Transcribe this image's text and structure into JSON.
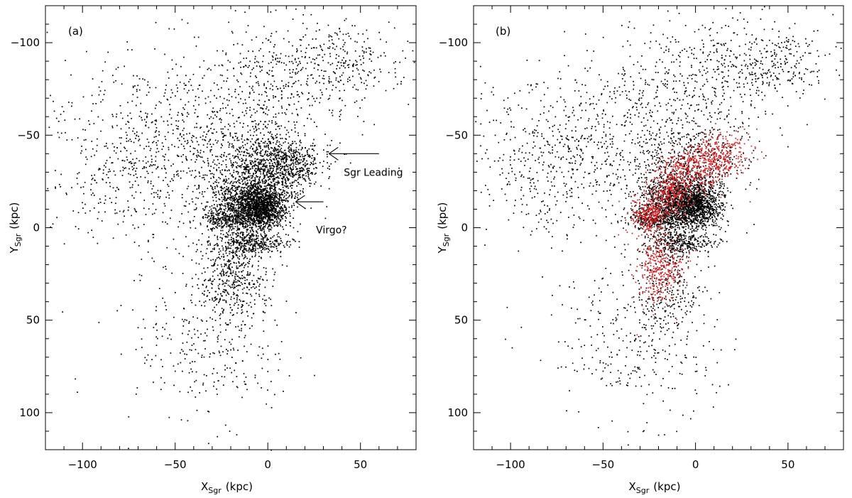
{
  "chart_data": [
    {
      "type": "scatter",
      "panel_label": "(a)",
      "xlabel": {
        "main": "X",
        "sub": "Sgr",
        "unit": "(kpc)"
      },
      "ylabel": {
        "main": "Y",
        "sub": "Sgr",
        "unit": "(kpc)"
      },
      "xlim": [
        -120,
        80
      ],
      "ylim": [
        120,
        -120
      ],
      "xticks": [
        -100,
        -50,
        0,
        50
      ],
      "yticks": [
        -100,
        -50,
        0,
        50,
        100
      ],
      "grid": false,
      "series": [
        {
          "color": "#000000",
          "clouds": [
            {
              "cx": -40,
              "cy": -50,
              "sx": 35,
              "sy": 22,
              "n": 700
            },
            {
              "cx": -80,
              "cy": -30,
              "sx": 18,
              "sy": 20,
              "n": 260
            },
            {
              "cx": 10,
              "cy": -85,
              "sx": 25,
              "sy": 15,
              "n": 380
            },
            {
              "cx": 40,
              "cy": -90,
              "sx": 15,
              "sy": 10,
              "n": 180
            },
            {
              "cx": -5,
              "cy": -35,
              "sx": 14,
              "sy": 12,
              "n": 600
            },
            {
              "cx": 8,
              "cy": -33,
              "sx": 10,
              "sy": 7,
              "n": 500
            },
            {
              "cx": -10,
              "cy": -15,
              "sx": 10,
              "sy": 7,
              "n": 1100
            },
            {
              "cx": -3,
              "cy": -10,
              "sx": 6,
              "sy": 5,
              "n": 900
            },
            {
              "cx": -22,
              "cy": -5,
              "sx": 8,
              "sy": 3,
              "n": 300
            },
            {
              "cx": -8,
              "cy": 8,
              "sx": 10,
              "sy": 3,
              "n": 350
            },
            {
              "cx": -20,
              "cy": 25,
              "sx": 9,
              "sy": 12,
              "n": 450
            },
            {
              "cx": -25,
              "cy": 60,
              "sx": 18,
              "sy": 22,
              "n": 250
            },
            {
              "cx": -55,
              "cy": 55,
              "sx": 20,
              "sy": 25,
              "n": 90
            }
          ]
        }
      ],
      "annotations": [
        {
          "text": "Sgr Leading",
          "arrow_tip": [
            33,
            -40
          ],
          "arrow_tail": [
            60,
            -40
          ],
          "text_at": [
            41,
            -28
          ]
        },
        {
          "text": "Virgo?",
          "arrow_tip": [
            15,
            -14
          ],
          "arrow_tail": [
            30,
            -14
          ],
          "text_at": [
            26,
            3
          ]
        }
      ]
    },
    {
      "type": "scatter",
      "panel_label": "(b)",
      "xlabel": {
        "main": "X",
        "sub": "Sgr",
        "unit": "(kpc)"
      },
      "ylabel": {
        "main": "Y",
        "sub": "Sgr",
        "unit": "(kpc)"
      },
      "xlim": [
        -120,
        80
      ],
      "ylim": [
        120,
        -120
      ],
      "xticks": [
        -100,
        -50,
        0,
        50
      ],
      "yticks": [
        -100,
        -50,
        0,
        50,
        100
      ],
      "grid": false,
      "series": [
        {
          "color": "#000000",
          "clouds": [
            {
              "cx": -40,
              "cy": -50,
              "sx": 35,
              "sy": 22,
              "n": 700
            },
            {
              "cx": -80,
              "cy": -30,
              "sx": 18,
              "sy": 20,
              "n": 260
            },
            {
              "cx": 10,
              "cy": -85,
              "sx": 25,
              "sy": 15,
              "n": 380
            },
            {
              "cx": 40,
              "cy": -90,
              "sx": 15,
              "sy": 10,
              "n": 180
            },
            {
              "cx": -5,
              "cy": -35,
              "sx": 14,
              "sy": 12,
              "n": 400
            },
            {
              "cx": -10,
              "cy": -15,
              "sx": 10,
              "sy": 7,
              "n": 1000
            },
            {
              "cx": 0,
              "cy": -12,
              "sx": 7,
              "sy": 6,
              "n": 900
            },
            {
              "cx": -22,
              "cy": -5,
              "sx": 8,
              "sy": 3,
              "n": 300
            },
            {
              "cx": -8,
              "cy": 8,
              "sx": 10,
              "sy": 3,
              "n": 350
            },
            {
              "cx": -15,
              "cy": 35,
              "sx": 8,
              "sy": 12,
              "n": 200
            },
            {
              "cx": -25,
              "cy": 60,
              "sx": 18,
              "sy": 22,
              "n": 250
            },
            {
              "cx": -55,
              "cy": 55,
              "sx": 20,
              "sy": 25,
              "n": 90
            }
          ]
        },
        {
          "color": "#e0191b",
          "clouds": [
            {
              "cx": 12,
              "cy": -40,
              "sx": 9,
              "sy": 6,
              "n": 320
            },
            {
              "cx": -2,
              "cy": -31,
              "sx": 8,
              "sy": 6,
              "n": 320
            },
            {
              "cx": -14,
              "cy": -20,
              "sx": 6,
              "sy": 6,
              "n": 300
            },
            {
              "cx": -25,
              "cy": -7,
              "sx": 5,
              "sy": 5,
              "n": 280
            },
            {
              "cx": -20,
              "cy": 22,
              "sx": 6,
              "sy": 10,
              "n": 380
            }
          ]
        }
      ]
    }
  ]
}
